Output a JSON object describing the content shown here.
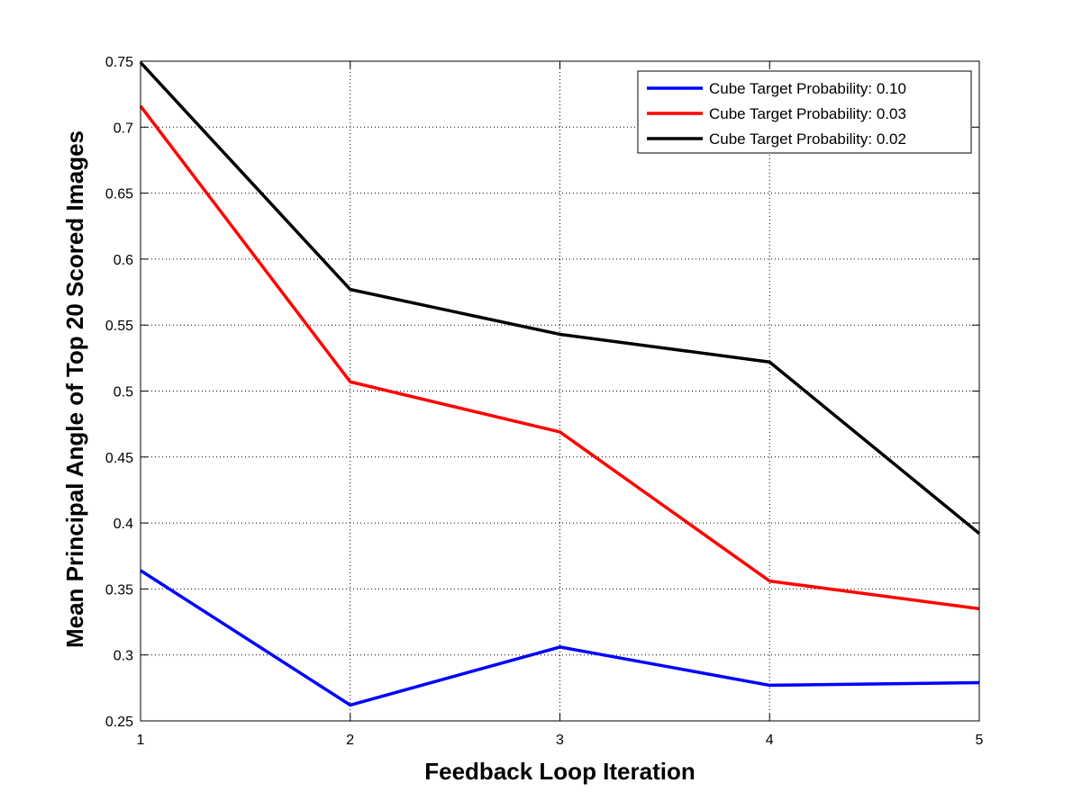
{
  "chart_data": {
    "type": "line",
    "xlabel": "Feedback Loop Iteration",
    "ylabel": "Mean Principal Angle of Top 20 Scored Images",
    "x": [
      1,
      2,
      3,
      4,
      5
    ],
    "xlim": [
      1,
      5
    ],
    "ylim": [
      0.25,
      0.75
    ],
    "xticks": [
      "1",
      "2",
      "3",
      "4",
      "5"
    ],
    "yticks": [
      "0.25",
      "0.3",
      "0.35",
      "0.4",
      "0.45",
      "0.5",
      "0.55",
      "0.6",
      "0.65",
      "0.7",
      "0.75"
    ],
    "grid": true,
    "legend_position": "top-right",
    "series": [
      {
        "name": "Cube Target Probability: 0.10",
        "color": "#0000ff",
        "values": [
          0.364,
          0.262,
          0.306,
          0.277,
          0.279
        ]
      },
      {
        "name": "Cube Target Probability: 0.03",
        "color": "#ff0000",
        "values": [
          0.716,
          0.507,
          0.469,
          0.356,
          0.335
        ]
      },
      {
        "name": "Cube Target Probability: 0.02",
        "color": "#000000",
        "values": [
          0.749,
          0.577,
          0.543,
          0.522,
          0.392
        ]
      }
    ]
  }
}
